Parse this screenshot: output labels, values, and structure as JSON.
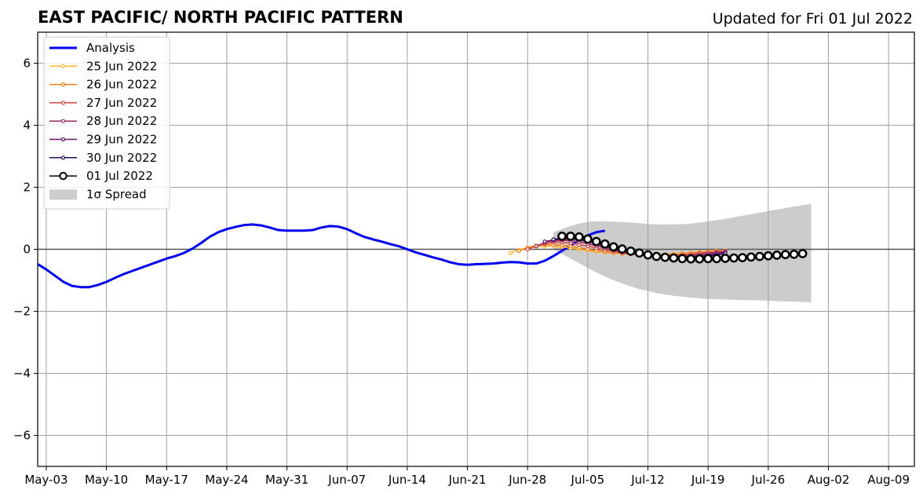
{
  "chart_data": {
    "type": "line",
    "title": "EAST PACIFIC/ NORTH PACIFIC PATTERN",
    "updated": "Updated for Fri 01 Jul 2022",
    "xlabel": "",
    "ylabel": "",
    "ylim": [
      -7,
      7
    ],
    "yticks": [
      -6,
      -4,
      -2,
      0,
      2,
      4,
      6
    ],
    "ytick_labels": [
      "−6",
      "−4",
      "−2",
      "0",
      "2",
      "4",
      "6"
    ],
    "xlim": [
      "2022-05-02",
      "2022-08-12"
    ],
    "xticks": [
      {
        "date": "2022-05-03",
        "label": "May-03"
      },
      {
        "date": "2022-05-10",
        "label": "May-10"
      },
      {
        "date": "2022-05-17",
        "label": "May-17"
      },
      {
        "date": "2022-05-24",
        "label": "May-24"
      },
      {
        "date": "2022-05-31",
        "label": "May-31"
      },
      {
        "date": "2022-06-07",
        "label": "Jun-07"
      },
      {
        "date": "2022-06-14",
        "label": "Jun-14"
      },
      {
        "date": "2022-06-21",
        "label": "Jun-21"
      },
      {
        "date": "2022-06-28",
        "label": "Jun-28"
      },
      {
        "date": "2022-07-05",
        "label": "Jul-05"
      },
      {
        "date": "2022-07-12",
        "label": "Jul-12"
      },
      {
        "date": "2022-07-19",
        "label": "Jul-19"
      },
      {
        "date": "2022-07-26",
        "label": "Jul-26"
      },
      {
        "date": "2022-08-02",
        "label": "Aug-02"
      },
      {
        "date": "2022-08-09",
        "label": "Aug-09"
      }
    ],
    "grid": true,
    "legend_position": "top-left",
    "analysis": {
      "name": "Analysis",
      "color": "#0000ee",
      "start_date": "2022-05-02",
      "values": [
        -0.48,
        -0.65,
        -0.85,
        -1.05,
        -1.18,
        -1.22,
        -1.22,
        -1.15,
        -1.05,
        -0.92,
        -0.8,
        -0.7,
        -0.6,
        -0.5,
        -0.4,
        -0.3,
        -0.22,
        -0.12,
        0.02,
        0.2,
        0.4,
        0.55,
        0.65,
        0.72,
        0.78,
        0.8,
        0.77,
        0.7,
        0.62,
        0.6,
        0.6,
        0.6,
        0.62,
        0.7,
        0.75,
        0.73,
        0.65,
        0.52,
        0.4,
        0.32,
        0.25,
        0.17,
        0.1,
        0.0,
        -0.1,
        -0.18,
        -0.26,
        -0.33,
        -0.42,
        -0.48,
        -0.5,
        -0.48,
        -0.47,
        -0.46,
        -0.43,
        -0.41,
        -0.42,
        -0.46,
        -0.46,
        -0.37,
        -0.22,
        -0.05,
        0.12,
        0.3,
        0.45,
        0.55,
        0.6
      ]
    },
    "forecasts": [
      {
        "name": "25 Jun 2022",
        "color": "#fcb52e",
        "start_date": "2022-06-26",
        "values": [
          -0.12,
          -0.02,
          0.05,
          0.08,
          0.1,
          0.1,
          0.08,
          0.04,
          0.0,
          -0.04,
          -0.07,
          -0.1,
          -0.12,
          -0.14,
          -0.15,
          -0.16,
          -0.17,
          -0.17,
          -0.16,
          -0.15,
          -0.13,
          -0.11,
          -0.09,
          -0.07,
          -0.05,
          -0.04
        ]
      },
      {
        "name": "26 Jun 2022",
        "color": "#f57d15",
        "start_date": "2022-06-27",
        "values": [
          -0.05,
          0.05,
          0.12,
          0.15,
          0.15,
          0.13,
          0.1,
          0.05,
          0.0,
          -0.04,
          -0.08,
          -0.11,
          -0.14,
          -0.16,
          -0.17,
          -0.18,
          -0.18,
          -0.17,
          -0.16,
          -0.14,
          -0.12,
          -0.1,
          -0.08,
          -0.06,
          -0.05
        ]
      },
      {
        "name": "27 Jun 2022",
        "color": "#d44842",
        "start_date": "2022-06-28",
        "values": [
          0.0,
          0.1,
          0.18,
          0.22,
          0.23,
          0.2,
          0.15,
          0.1,
          0.04,
          -0.02,
          -0.07,
          -0.11,
          -0.15,
          -0.18,
          -0.2,
          -0.21,
          -0.21,
          -0.2,
          -0.18,
          -0.16,
          -0.13,
          -0.1,
          -0.08,
          -0.06
        ]
      },
      {
        "name": "28 Jun 2022",
        "color": "#9f2a63",
        "start_date": "2022-06-29",
        "values": [
          0.1,
          0.22,
          0.27,
          0.29,
          0.28,
          0.24,
          0.18,
          0.11,
          0.04,
          -0.03,
          -0.09,
          -0.14,
          -0.18,
          -0.21,
          -0.23,
          -0.24,
          -0.24,
          -0.22,
          -0.2,
          -0.17,
          -0.14,
          -0.11,
          -0.08
        ]
      },
      {
        "name": "29 Jun 2022",
        "color": "#65156e",
        "start_date": "2022-06-30",
        "values": [
          0.25,
          0.3,
          0.33,
          0.33,
          0.3,
          0.24,
          0.17,
          0.09,
          0.01,
          -0.06,
          -0.12,
          -0.17,
          -0.21,
          -0.24,
          -0.26,
          -0.27,
          -0.26,
          -0.24,
          -0.21,
          -0.18,
          -0.14,
          -0.1
        ]
      },
      {
        "name": "30 Jun 2022",
        "color": "#280b54",
        "start_date": "2022-07-01",
        "values": [
          0.32,
          0.36,
          0.37,
          0.35,
          0.3,
          0.22,
          0.13,
          0.04,
          -0.04,
          -0.11,
          -0.17,
          -0.22,
          -0.25,
          -0.27,
          -0.28,
          -0.28,
          -0.27,
          -0.25,
          -0.22,
          -0.18,
          -0.14
        ]
      }
    ],
    "current_forecast": {
      "name": "01 Jul 2022",
      "color": "#000000",
      "start_date": "2022-07-02",
      "values": [
        0.42,
        0.42,
        0.4,
        0.33,
        0.25,
        0.17,
        0.08,
        0.01,
        -0.06,
        -0.12,
        -0.18,
        -0.23,
        -0.26,
        -0.28,
        -0.3,
        -0.31,
        -0.31,
        -0.3,
        -0.3,
        -0.29,
        -0.28,
        -0.27,
        -0.25,
        -0.23,
        -0.21,
        -0.19,
        -0.17,
        -0.16,
        -0.14
      ]
    },
    "spread": {
      "name": "1σ Spread",
      "color": "#cccccc",
      "start_date": "2022-07-01",
      "upper": [
        0.55,
        0.65,
        0.75,
        0.83,
        0.88,
        0.9,
        0.9,
        0.89,
        0.88,
        0.86,
        0.84,
        0.82,
        0.8,
        0.8,
        0.8,
        0.81,
        0.83,
        0.86,
        0.9,
        0.94,
        0.98,
        1.03,
        1.08,
        1.13,
        1.18,
        1.23,
        1.28,
        1.33,
        1.38,
        1.42,
        1.46
      ],
      "lower": [
        0.0,
        -0.15,
        -0.3,
        -0.45,
        -0.6,
        -0.75,
        -0.88,
        -1.0,
        -1.1,
        -1.2,
        -1.28,
        -1.35,
        -1.41,
        -1.46,
        -1.5,
        -1.53,
        -1.56,
        -1.58,
        -1.6,
        -1.61,
        -1.62,
        -1.63,
        -1.64,
        -1.64,
        -1.65,
        -1.66,
        -1.67,
        -1.68,
        -1.69,
        -1.7,
        -1.72
      ]
    }
  }
}
